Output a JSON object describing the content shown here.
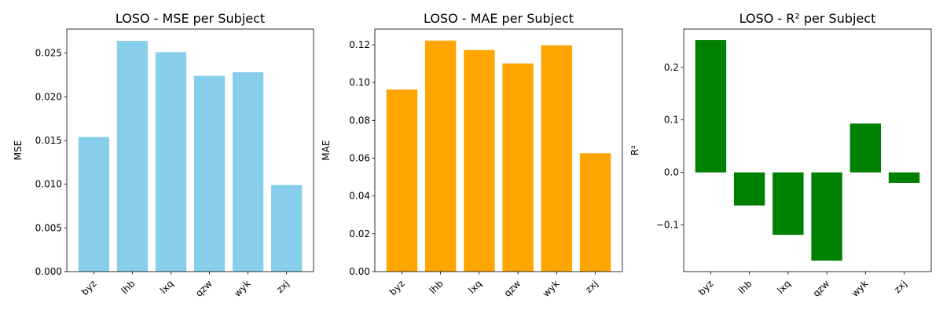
{
  "chart_data": [
    {
      "type": "bar",
      "title": "LOSO - MSE per Subject",
      "xlabel": "",
      "ylabel": "MSE",
      "categories": [
        "byz",
        "lhb",
        "lxq",
        "qzw",
        "wyk",
        "zxj"
      ],
      "values": [
        0.0154,
        0.0264,
        0.0251,
        0.0224,
        0.0228,
        0.0099
      ],
      "color": "#87ceeb",
      "ylim": [
        0,
        0.02775
      ],
      "yticks": [
        0.0,
        0.005,
        0.01,
        0.015,
        0.02,
        0.025
      ],
      "ytick_labels": [
        "0.000",
        "0.005",
        "0.010",
        "0.015",
        "0.020",
        "0.025"
      ],
      "grid": false
    },
    {
      "type": "bar",
      "title": "LOSO - MAE per Subject",
      "xlabel": "",
      "ylabel": "MAE",
      "categories": [
        "byz",
        "lhb",
        "lxq",
        "qzw",
        "wyk",
        "zxj"
      ],
      "values": [
        0.0963,
        0.1222,
        0.1172,
        0.1101,
        0.1197,
        0.0626
      ],
      "color": "#ffa500",
      "ylim": [
        0,
        0.1283
      ],
      "yticks": [
        0.0,
        0.02,
        0.04,
        0.06,
        0.08,
        0.1,
        0.12
      ],
      "ytick_labels": [
        "0.00",
        "0.02",
        "0.04",
        "0.06",
        "0.08",
        "0.10",
        "0.12"
      ],
      "grid": false
    },
    {
      "type": "bar",
      "title": "LOSO - R² per Subject",
      "xlabel": "",
      "ylabel": "R²",
      "categories": [
        "byz",
        "lhb",
        "lxq",
        "qzw",
        "wyk",
        "zxj"
      ],
      "values": [
        0.252,
        -0.063,
        -0.119,
        -0.168,
        0.093,
        -0.02
      ],
      "color": "#008000",
      "ylim": [
        -0.189,
        0.273
      ],
      "yticks": [
        -0.1,
        0.0,
        0.1,
        0.2
      ],
      "ytick_labels": [
        "−0.1",
        "0.0",
        "0.1",
        "0.2"
      ],
      "grid": false
    }
  ]
}
